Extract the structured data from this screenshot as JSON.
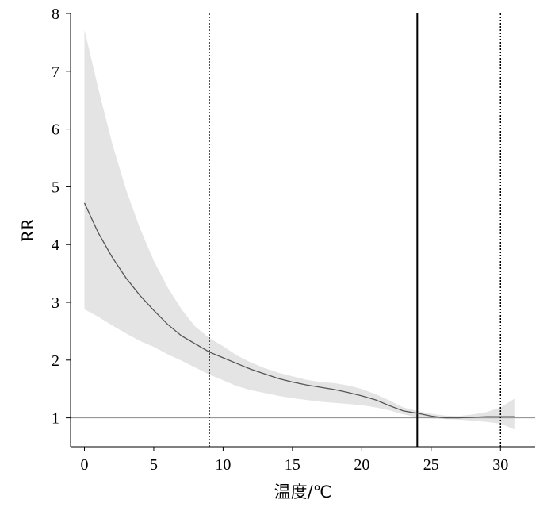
{
  "chart_data": {
    "type": "line",
    "title": "",
    "xlabel": "温度/℃",
    "ylabel": "RR",
    "xlim": [
      -1,
      32.5
    ],
    "ylim": [
      0.5,
      8
    ],
    "x_ticks": [
      0,
      5,
      10,
      15,
      20,
      25,
      30
    ],
    "y_ticks": [
      1,
      2,
      3,
      4,
      5,
      6,
      7,
      8
    ],
    "grid": false,
    "legend": "none",
    "reference_line": {
      "y": 1
    },
    "vlines": [
      {
        "x": 9,
        "style": "dotted"
      },
      {
        "x": 24,
        "style": "solid"
      },
      {
        "x": 30,
        "style": "dotted"
      }
    ],
    "colors": {
      "line": "#555555",
      "band": "#e4e4e4",
      "reference": "#8a8a8a",
      "vline": "#000000"
    },
    "series": [
      {
        "x": [
          0,
          1,
          2,
          3,
          4,
          5,
          6,
          7,
          8,
          9,
          10,
          11,
          12,
          13,
          14,
          15,
          16,
          17,
          18,
          19,
          20,
          21,
          22,
          23,
          24,
          25,
          26,
          27,
          28,
          29,
          30,
          31
        ],
        "y": [
          4.72,
          4.2,
          3.78,
          3.42,
          3.12,
          2.86,
          2.62,
          2.42,
          2.28,
          2.14,
          2.04,
          1.94,
          1.84,
          1.76,
          1.68,
          1.62,
          1.57,
          1.53,
          1.49,
          1.44,
          1.38,
          1.31,
          1.21,
          1.12,
          1.08,
          1.03,
          1.0,
          1.0,
          1.01,
          1.02,
          1.02,
          1.02
        ],
        "lower": [
          2.88,
          2.75,
          2.6,
          2.46,
          2.33,
          2.23,
          2.1,
          1.99,
          1.87,
          1.75,
          1.65,
          1.55,
          1.48,
          1.43,
          1.38,
          1.34,
          1.31,
          1.28,
          1.26,
          1.24,
          1.22,
          1.18,
          1.13,
          1.06,
          1.01,
          0.99,
          0.98,
          0.97,
          0.95,
          0.93,
          0.9,
          0.8
        ],
        "upper": [
          7.72,
          6.7,
          5.75,
          4.95,
          4.28,
          3.72,
          3.26,
          2.88,
          2.58,
          2.38,
          2.24,
          2.08,
          1.96,
          1.86,
          1.78,
          1.72,
          1.66,
          1.62,
          1.6,
          1.56,
          1.5,
          1.41,
          1.3,
          1.18,
          1.12,
          1.07,
          1.04,
          1.03,
          1.06,
          1.1,
          1.18,
          1.33
        ]
      }
    ]
  }
}
